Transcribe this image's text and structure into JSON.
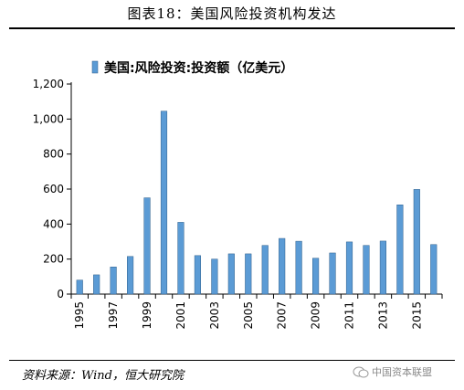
{
  "figure_title": "图表18：美国风险投资机构发达",
  "source_note": "资料来源：Wind，恒大研究院",
  "watermark_left": "",
  "watermark_right": "中国资本联盟",
  "colors": {
    "bar_fill": "#5b9bd5",
    "bar_stroke": "#2e5e8a",
    "axis": "#000000",
    "rule": "#000000"
  },
  "chart_data": {
    "type": "bar",
    "title": "",
    "xlabel": "",
    "ylabel": "",
    "legend": {
      "position": "top",
      "entries": [
        "美国:风险投资:投资额（亿美元）"
      ]
    },
    "ylim": [
      0,
      1200
    ],
    "yticks": [
      0,
      200,
      400,
      600,
      800,
      1000,
      1200
    ],
    "ytick_labels": [
      "0",
      "200",
      "400",
      "600",
      "800",
      "1,000",
      "1,200"
    ],
    "grid": false,
    "categories": [
      "1995",
      "1996",
      "1997",
      "1998",
      "1999",
      "2000",
      "2001",
      "2002",
      "2003",
      "2004",
      "2005",
      "2006",
      "2007",
      "2008",
      "2009",
      "2010",
      "2011",
      "2012",
      "2013",
      "2014",
      "2015",
      "2016"
    ],
    "xtick_labels": [
      "1995",
      "1997",
      "1999",
      "2001",
      "2003",
      "2005",
      "2007",
      "2009",
      "2011",
      "2013",
      "2015"
    ],
    "series": [
      {
        "name": "美国:风险投资:投资额（亿美元）",
        "values": [
          80,
          110,
          155,
          215,
          550,
          1045,
          410,
          220,
          200,
          230,
          230,
          278,
          318,
          302,
          205,
          235,
          298,
          278,
          303,
          510,
          598,
          283
        ]
      }
    ]
  }
}
